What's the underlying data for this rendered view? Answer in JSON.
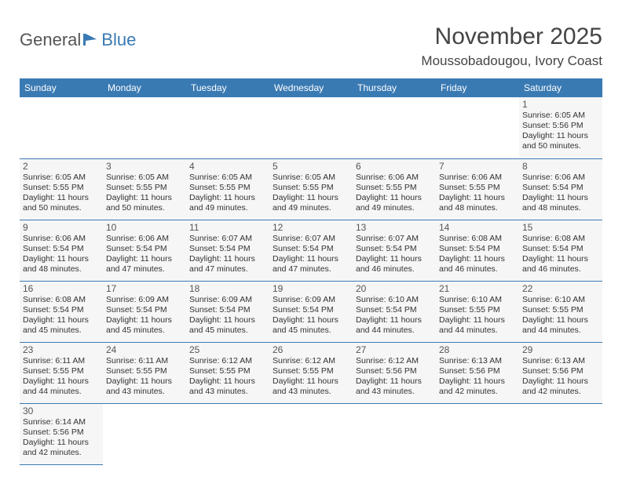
{
  "logo": {
    "text1": "General",
    "text2": "Blue"
  },
  "title": "November 2025",
  "location": "Moussobadougou, Ivory Coast",
  "colors": {
    "header_bg": "#3a7ab3",
    "header_text": "#ffffff",
    "cell_bg": "#f6f6f6",
    "border": "#3a7ab3",
    "logo_blue": "#3a7ab3",
    "logo_gray": "#555555"
  },
  "weekdays": [
    "Sunday",
    "Monday",
    "Tuesday",
    "Wednesday",
    "Thursday",
    "Friday",
    "Saturday"
  ],
  "weeks": [
    [
      null,
      null,
      null,
      null,
      null,
      null,
      {
        "n": "1",
        "sr": "Sunrise: 6:05 AM",
        "ss": "Sunset: 5:56 PM",
        "d1": "Daylight: 11 hours",
        "d2": "and 50 minutes."
      }
    ],
    [
      {
        "n": "2",
        "sr": "Sunrise: 6:05 AM",
        "ss": "Sunset: 5:55 PM",
        "d1": "Daylight: 11 hours",
        "d2": "and 50 minutes."
      },
      {
        "n": "3",
        "sr": "Sunrise: 6:05 AM",
        "ss": "Sunset: 5:55 PM",
        "d1": "Daylight: 11 hours",
        "d2": "and 50 minutes."
      },
      {
        "n": "4",
        "sr": "Sunrise: 6:05 AM",
        "ss": "Sunset: 5:55 PM",
        "d1": "Daylight: 11 hours",
        "d2": "and 49 minutes."
      },
      {
        "n": "5",
        "sr": "Sunrise: 6:05 AM",
        "ss": "Sunset: 5:55 PM",
        "d1": "Daylight: 11 hours",
        "d2": "and 49 minutes."
      },
      {
        "n": "6",
        "sr": "Sunrise: 6:06 AM",
        "ss": "Sunset: 5:55 PM",
        "d1": "Daylight: 11 hours",
        "d2": "and 49 minutes."
      },
      {
        "n": "7",
        "sr": "Sunrise: 6:06 AM",
        "ss": "Sunset: 5:55 PM",
        "d1": "Daylight: 11 hours",
        "d2": "and 48 minutes."
      },
      {
        "n": "8",
        "sr": "Sunrise: 6:06 AM",
        "ss": "Sunset: 5:54 PM",
        "d1": "Daylight: 11 hours",
        "d2": "and 48 minutes."
      }
    ],
    [
      {
        "n": "9",
        "sr": "Sunrise: 6:06 AM",
        "ss": "Sunset: 5:54 PM",
        "d1": "Daylight: 11 hours",
        "d2": "and 48 minutes."
      },
      {
        "n": "10",
        "sr": "Sunrise: 6:06 AM",
        "ss": "Sunset: 5:54 PM",
        "d1": "Daylight: 11 hours",
        "d2": "and 47 minutes."
      },
      {
        "n": "11",
        "sr": "Sunrise: 6:07 AM",
        "ss": "Sunset: 5:54 PM",
        "d1": "Daylight: 11 hours",
        "d2": "and 47 minutes."
      },
      {
        "n": "12",
        "sr": "Sunrise: 6:07 AM",
        "ss": "Sunset: 5:54 PM",
        "d1": "Daylight: 11 hours",
        "d2": "and 47 minutes."
      },
      {
        "n": "13",
        "sr": "Sunrise: 6:07 AM",
        "ss": "Sunset: 5:54 PM",
        "d1": "Daylight: 11 hours",
        "d2": "and 46 minutes."
      },
      {
        "n": "14",
        "sr": "Sunrise: 6:08 AM",
        "ss": "Sunset: 5:54 PM",
        "d1": "Daylight: 11 hours",
        "d2": "and 46 minutes."
      },
      {
        "n": "15",
        "sr": "Sunrise: 6:08 AM",
        "ss": "Sunset: 5:54 PM",
        "d1": "Daylight: 11 hours",
        "d2": "and 46 minutes."
      }
    ],
    [
      {
        "n": "16",
        "sr": "Sunrise: 6:08 AM",
        "ss": "Sunset: 5:54 PM",
        "d1": "Daylight: 11 hours",
        "d2": "and 45 minutes."
      },
      {
        "n": "17",
        "sr": "Sunrise: 6:09 AM",
        "ss": "Sunset: 5:54 PM",
        "d1": "Daylight: 11 hours",
        "d2": "and 45 minutes."
      },
      {
        "n": "18",
        "sr": "Sunrise: 6:09 AM",
        "ss": "Sunset: 5:54 PM",
        "d1": "Daylight: 11 hours",
        "d2": "and 45 minutes."
      },
      {
        "n": "19",
        "sr": "Sunrise: 6:09 AM",
        "ss": "Sunset: 5:54 PM",
        "d1": "Daylight: 11 hours",
        "d2": "and 45 minutes."
      },
      {
        "n": "20",
        "sr": "Sunrise: 6:10 AM",
        "ss": "Sunset: 5:54 PM",
        "d1": "Daylight: 11 hours",
        "d2": "and 44 minutes."
      },
      {
        "n": "21",
        "sr": "Sunrise: 6:10 AM",
        "ss": "Sunset: 5:55 PM",
        "d1": "Daylight: 11 hours",
        "d2": "and 44 minutes."
      },
      {
        "n": "22",
        "sr": "Sunrise: 6:10 AM",
        "ss": "Sunset: 5:55 PM",
        "d1": "Daylight: 11 hours",
        "d2": "and 44 minutes."
      }
    ],
    [
      {
        "n": "23",
        "sr": "Sunrise: 6:11 AM",
        "ss": "Sunset: 5:55 PM",
        "d1": "Daylight: 11 hours",
        "d2": "and 44 minutes."
      },
      {
        "n": "24",
        "sr": "Sunrise: 6:11 AM",
        "ss": "Sunset: 5:55 PM",
        "d1": "Daylight: 11 hours",
        "d2": "and 43 minutes."
      },
      {
        "n": "25",
        "sr": "Sunrise: 6:12 AM",
        "ss": "Sunset: 5:55 PM",
        "d1": "Daylight: 11 hours",
        "d2": "and 43 minutes."
      },
      {
        "n": "26",
        "sr": "Sunrise: 6:12 AM",
        "ss": "Sunset: 5:55 PM",
        "d1": "Daylight: 11 hours",
        "d2": "and 43 minutes."
      },
      {
        "n": "27",
        "sr": "Sunrise: 6:12 AM",
        "ss": "Sunset: 5:56 PM",
        "d1": "Daylight: 11 hours",
        "d2": "and 43 minutes."
      },
      {
        "n": "28",
        "sr": "Sunrise: 6:13 AM",
        "ss": "Sunset: 5:56 PM",
        "d1": "Daylight: 11 hours",
        "d2": "and 42 minutes."
      },
      {
        "n": "29",
        "sr": "Sunrise: 6:13 AM",
        "ss": "Sunset: 5:56 PM",
        "d1": "Daylight: 11 hours",
        "d2": "and 42 minutes."
      }
    ],
    [
      {
        "n": "30",
        "sr": "Sunrise: 6:14 AM",
        "ss": "Sunset: 5:56 PM",
        "d1": "Daylight: 11 hours",
        "d2": "and 42 minutes."
      },
      null,
      null,
      null,
      null,
      null,
      null
    ]
  ]
}
